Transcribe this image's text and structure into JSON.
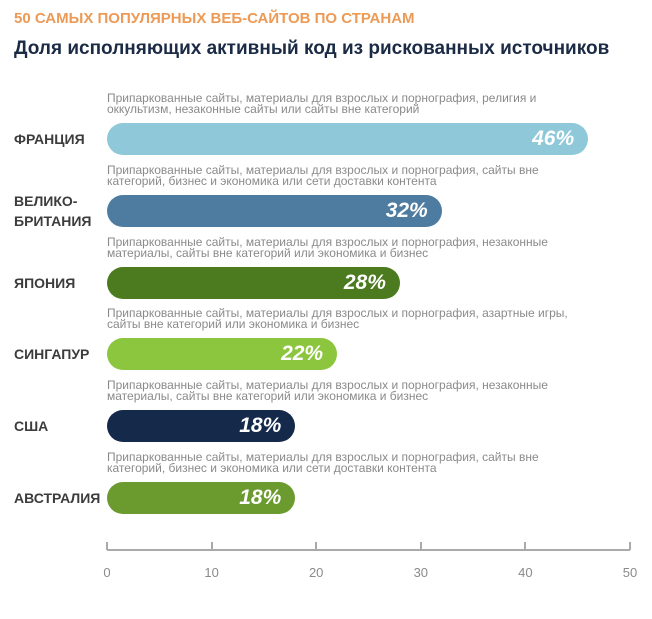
{
  "chart_data": {
    "type": "bar",
    "orientation": "horizontal",
    "title": "50 САМЫХ ПОПУЛЯРНЫХ ВЕБ-САЙТОВ ПО СТРАНАМ",
    "subtitle": "Доля исполняющих активный код из рискованных источников",
    "categories": [
      "ФРАНЦИЯ",
      "ВЕЛИКО-\nБРИТАНИЯ",
      "ЯПОНИЯ",
      "СИНГАПУР",
      "США",
      "АВСТРАЛИЯ"
    ],
    "descriptions": [
      "Припаркованные сайты, материалы для взрослых и порнография, религия и оккультизм, незаконные сайты или сайты вне категорий",
      "Припаркованные сайты, материалы для взрослых и порнография, сайты вне категорий, бизнес и экономика или сети доставки контента",
      "Припаркованные сайты, материалы для взрослых и порнография, незаконные материалы, сайты вне категорий или экономика и бизнес",
      "Припаркованные сайты, материалы для взрослых и порнография, азартные игры, сайты вне категорий или экономика и бизнес",
      "Припаркованные сайты, материалы для взрослых и порнография, незаконные материалы, сайты вне категорий или экономика и бизнес",
      "Припаркованные сайты, материалы для взрослых и порнография, сайты вне категорий, бизнес и экономика или сети доставки контента"
    ],
    "values": [
      46,
      32,
      28,
      22,
      18,
      18
    ],
    "value_labels": [
      "46%",
      "32%",
      "28%",
      "22%",
      "18%",
      "18%"
    ],
    "colors": [
      "#8fc9d9",
      "#4e7ca0",
      "#4b7a1f",
      "#8cc63f",
      "#15294b",
      "#6b9b2f"
    ],
    "xlim": [
      0,
      50
    ],
    "xticks": [
      0,
      10,
      20,
      30,
      40,
      50
    ]
  }
}
